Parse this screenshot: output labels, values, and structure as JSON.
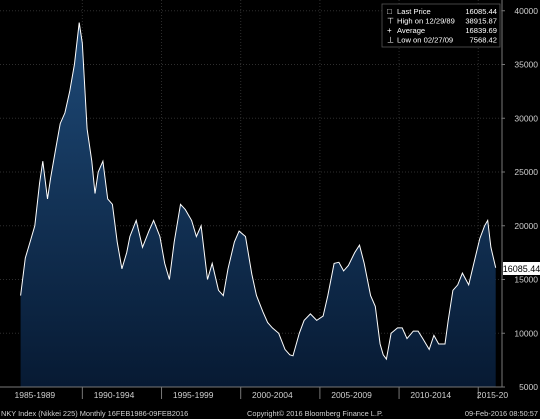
{
  "chart_data": {
    "type": "area",
    "title": "",
    "xlabel": "",
    "ylabel": "",
    "ylim": [
      5000,
      41000
    ],
    "xlim": [
      1984.8,
      2016.5
    ],
    "yticks": [
      5000,
      10000,
      15000,
      20000,
      25000,
      30000,
      35000,
      40000
    ],
    "xtick_labels": [
      {
        "label": "1985-1989",
        "x": 1987
      },
      {
        "label": "1990-1994",
        "x": 1992
      },
      {
        "label": "1995-1999",
        "x": 1997
      },
      {
        "label": "2000-2004",
        "x": 2002
      },
      {
        "label": "2005-2009",
        "x": 2007
      },
      {
        "label": "2010-2014",
        "x": 2012
      },
      {
        "label": "2015-20",
        "x": 2015.9
      }
    ],
    "period_boundaries": [
      1990,
      1995,
      2000,
      2005,
      2010,
      2015
    ],
    "grid": true,
    "legend_position": "top-right",
    "colors": {
      "background": "#000000",
      "line": "#ffffff",
      "fill_top": "#1e4a78",
      "fill_bottom": "#071a33",
      "axis_text": "#d0d0d0",
      "grid": "#2e2e2e"
    },
    "series": [
      {
        "x": [
          1986.1,
          1986.4,
          1986.7,
          1987.0,
          1987.3,
          1987.5,
          1987.8,
          1988.0,
          1988.3,
          1988.6,
          1988.9,
          1989.2,
          1989.5,
          1989.8,
          1990.0,
          1990.3,
          1990.6,
          1990.8,
          1991.0,
          1991.3,
          1991.6,
          1991.9,
          1992.2,
          1992.5,
          1992.8,
          1993.0,
          1993.4,
          1993.8,
          1994.2,
          1994.5,
          1994.9,
          1995.2,
          1995.5,
          1995.8,
          1996.2,
          1996.5,
          1996.9,
          1997.2,
          1997.5,
          1997.9,
          1998.2,
          1998.6,
          1998.9,
          1999.2,
          1999.6,
          1999.9,
          2000.3,
          2000.7,
          2001.0,
          2001.4,
          2001.7,
          2002.0,
          2002.4,
          2002.8,
          2003.1,
          2003.3,
          2003.7,
          2004.0,
          2004.4,
          2004.8,
          2005.2,
          2005.5,
          2005.9,
          2006.2,
          2006.5,
          2006.8,
          2007.2,
          2007.5,
          2007.8,
          2008.2,
          2008.5,
          2008.8,
          2009.0,
          2009.2,
          2009.5,
          2009.9,
          2010.2,
          2010.5,
          2010.9,
          2011.2,
          2011.5,
          2011.9,
          2012.2,
          2012.5,
          2012.9,
          2013.1,
          2013.4,
          2013.7,
          2014.0,
          2014.4,
          2014.8,
          2015.1,
          2015.4,
          2015.6,
          2015.8,
          2016.1
        ],
        "y": [
          13500,
          17000,
          18500,
          20000,
          24000,
          26000,
          22500,
          24500,
          27000,
          29500,
          30500,
          32500,
          35000,
          38900,
          37000,
          29000,
          26000,
          23000,
          25000,
          26000,
          22500,
          22000,
          18500,
          16000,
          17500,
          19000,
          20500,
          18000,
          19500,
          20500,
          19000,
          16500,
          15000,
          18500,
          22000,
          21500,
          20500,
          19000,
          20000,
          15000,
          16500,
          14000,
          13500,
          16000,
          18500,
          19500,
          19000,
          15500,
          13500,
          12000,
          11000,
          10500,
          10000,
          8500,
          8000,
          7900,
          10000,
          11200,
          11800,
          11200,
          11600,
          13500,
          16500,
          16600,
          15800,
          16300,
          17500,
          18200,
          16500,
          13500,
          12500,
          9000,
          8000,
          7600,
          10000,
          10500,
          10500,
          9500,
          10200,
          10200,
          9500,
          8500,
          9800,
          9000,
          9000,
          11200,
          14000,
          14500,
          15600,
          14500,
          17000,
          18800,
          20000,
          20500,
          18000,
          16085.44
        ]
      }
    ],
    "legend": {
      "entries": [
        {
          "marker": "□",
          "label": "Last Price",
          "value": "16085.44"
        },
        {
          "marker": "⊤",
          "label": "High on 12/29/89",
          "value": "38915.87"
        },
        {
          "marker": "+",
          "label": "Average",
          "value": "16839.69"
        },
        {
          "marker": "⊥",
          "label": "Low on 02/27/09",
          "value": "7568.42"
        }
      ]
    },
    "last_price_label": "16085.44",
    "footer": {
      "left": "NKY Index (Nikkei 225)  Monthly 16FEB1986-09FEB2016",
      "center": "Copyright© 2016 Bloomberg Finance L.P.",
      "right": "09-Feb-2016 08:50:57"
    }
  }
}
